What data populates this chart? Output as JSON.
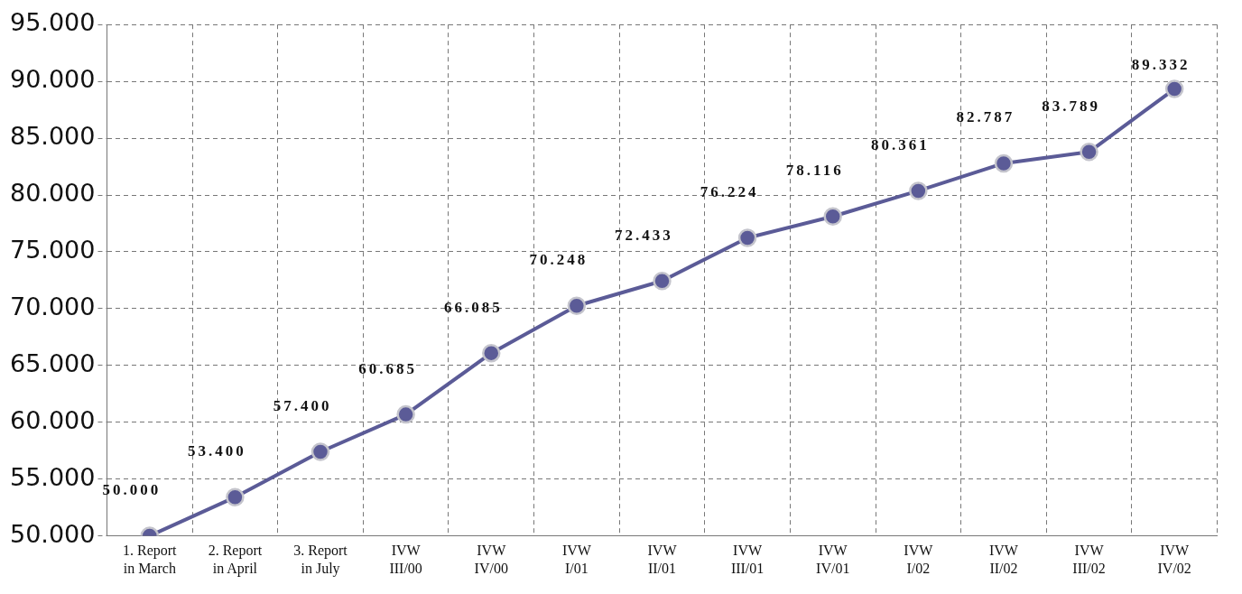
{
  "chart_data": {
    "type": "line",
    "categories": [
      "1. Report\nin March",
      "2. Report\nin April",
      "3. Report\nin July",
      "IVW\nIII/00",
      "IVW\nIV/00",
      "IVW\nI/01",
      "IVW\nII/01",
      "IVW\nIII/01",
      "IVW\nIV/01",
      "IVW\nI/02",
      "IVW\nII/02",
      "IVW\nIII/02",
      "IVW\nIV/02"
    ],
    "series": [
      {
        "color": "#5b5b97",
        "values": [
          50000,
          53400,
          57400,
          60685,
          66085,
          70248,
          72433,
          76224,
          78116,
          80361,
          82787,
          83789,
          89332
        ],
        "value_labels": [
          "50.000",
          "53.400",
          "57.400",
          "60.685",
          "66.085",
          "70.248",
          "72.433",
          "76.224",
          "78.116",
          "80.361",
          "82.787",
          "83.789",
          "89.332"
        ]
      }
    ],
    "ylim": [
      50000,
      95000
    ],
    "yticks": [
      {
        "value": 50000,
        "label": "50.000"
      },
      {
        "value": 55000,
        "label": "55.000"
      },
      {
        "value": 60000,
        "label": "60.000"
      },
      {
        "value": 65000,
        "label": "65.000"
      },
      {
        "value": 70000,
        "label": "70.000"
      },
      {
        "value": 75000,
        "label": "75.000"
      },
      {
        "value": 80000,
        "label": "80.000"
      },
      {
        "value": 85000,
        "label": "85.000"
      },
      {
        "value": 90000,
        "label": "90.000"
      },
      {
        "value": 95000,
        "label": "95.000"
      }
    ],
    "grid": true,
    "legend": false,
    "marker": "circle",
    "line_style": "solid"
  }
}
